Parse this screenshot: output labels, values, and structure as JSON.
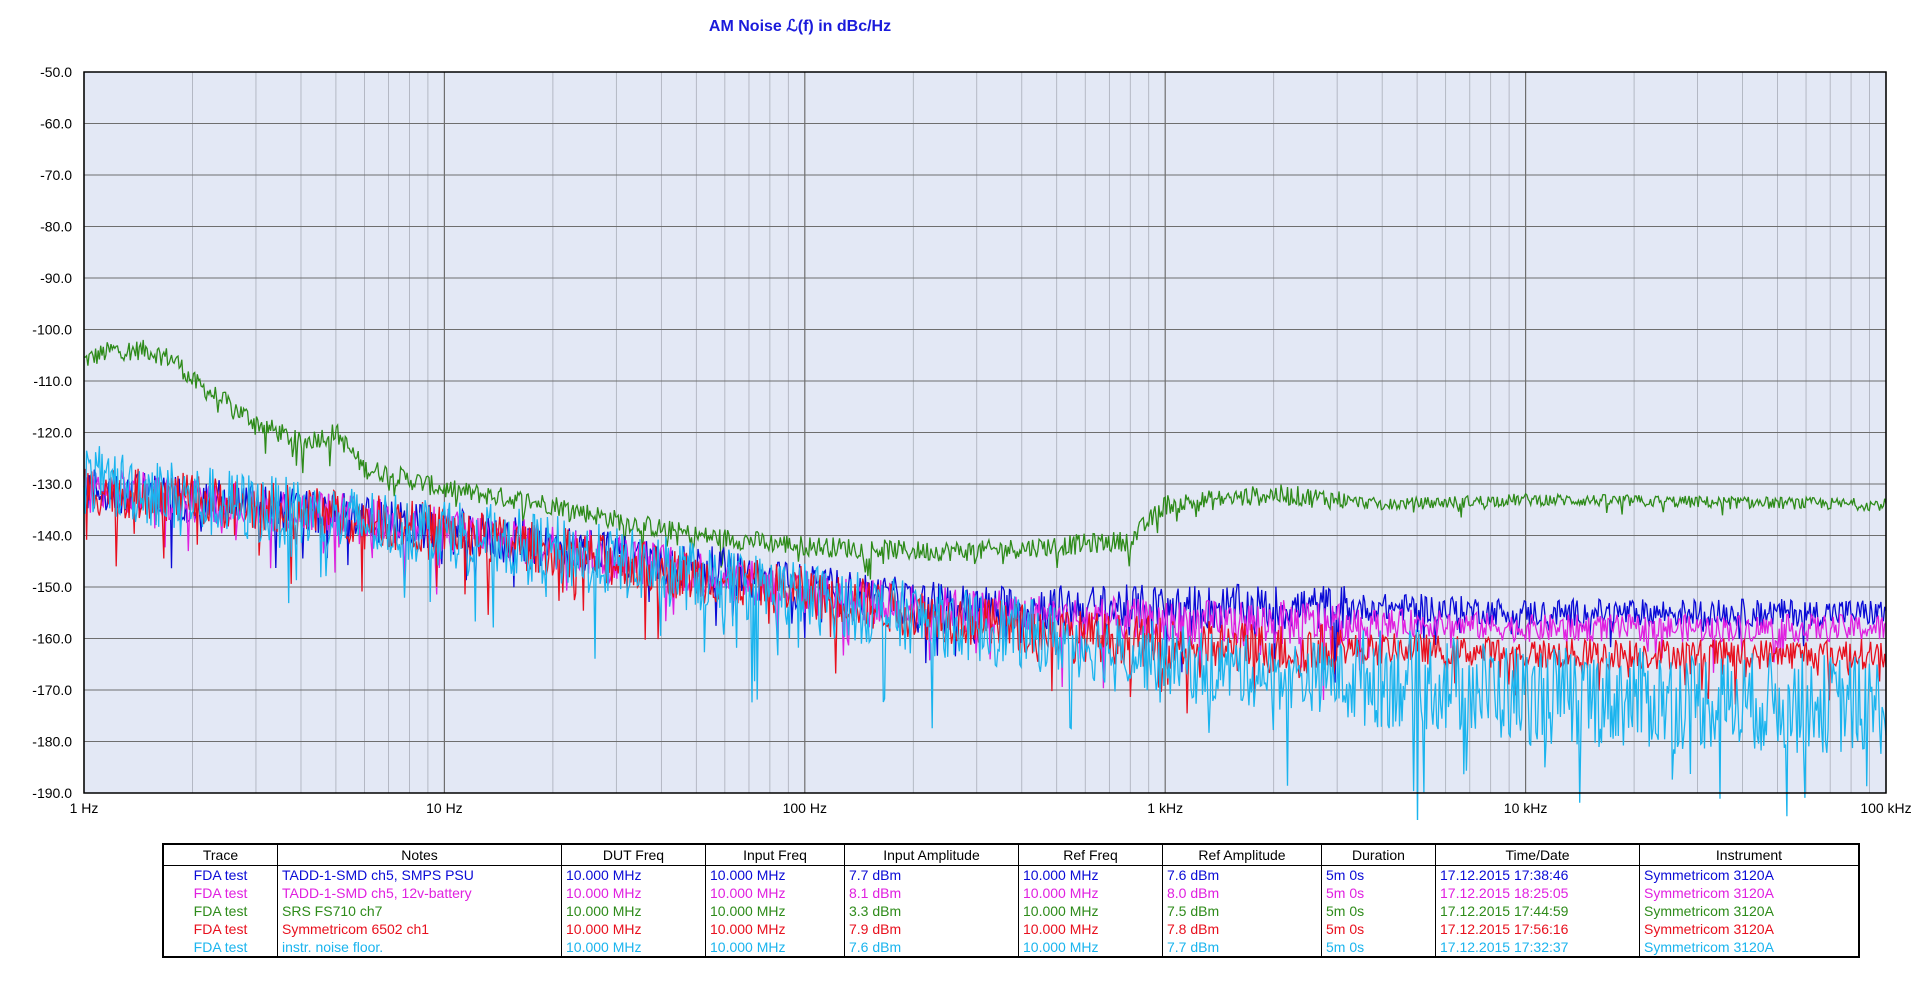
{
  "chart_data": {
    "type": "line",
    "title": "AM Noise ℒ(f) in dBc/Hz",
    "xlabel": "",
    "ylabel": "",
    "xscale": "log",
    "xlim": [
      1,
      100000
    ],
    "ylim": [
      -190,
      -50
    ],
    "grid": true,
    "x_tick_labels": [
      "1 Hz",
      "10 Hz",
      "100 Hz",
      "1 kHz",
      "10 kHz",
      "100 kHz"
    ],
    "y_tick_labels": [
      "-50.0",
      "-60.0",
      "-70.0",
      "-80.0",
      "-90.0",
      "-100.0",
      "-110.0",
      "-120.0",
      "-130.0",
      "-140.0",
      "-150.0",
      "-160.0",
      "-170.0",
      "-180.0",
      "-190.0"
    ],
    "series": [
      {
        "color": "#2e8b1a",
        "x": [
          1,
          1.2,
          1.5,
          1.8,
          2,
          3,
          4,
          5,
          6,
          7,
          10,
          20,
          30,
          50,
          100,
          200,
          300,
          500,
          800,
          1000,
          2000,
          3000,
          4000,
          10000,
          100000
        ],
        "y": [
          -106,
          -104,
          -104,
          -106,
          -110,
          -118,
          -122,
          -120,
          -127,
          -128,
          -131,
          -134,
          -137,
          -140,
          -142,
          -143,
          -143,
          -142,
          -141,
          -134,
          -132,
          -133,
          -134,
          -133,
          -134
        ]
      },
      {
        "color": "#0a0ad6",
        "x": [
          1,
          2,
          5,
          10,
          20,
          50,
          100,
          200,
          300,
          500,
          1000,
          2000,
          3000,
          5000,
          10000,
          100000
        ],
        "y": [
          -131,
          -133,
          -136,
          -139,
          -142,
          -146,
          -150,
          -153,
          -154,
          -154,
          -154,
          -154,
          -154,
          -154,
          -155,
          -155
        ]
      },
      {
        "color": "#e020e0",
        "x": [
          1,
          2,
          5,
          10,
          20,
          50,
          100,
          200,
          500,
          1000,
          2000,
          5000,
          10000,
          100000
        ],
        "y": [
          -131,
          -133,
          -136,
          -139,
          -142,
          -147,
          -151,
          -154,
          -156,
          -157,
          -157,
          -157,
          -158,
          -158
        ]
      },
      {
        "color": "#e8101e",
        "x": [
          1,
          2,
          5,
          10,
          20,
          50,
          100,
          200,
          500,
          1000,
          2000,
          5000,
          10000,
          100000
        ],
        "y": [
          -131,
          -133,
          -136,
          -139,
          -143,
          -148,
          -151,
          -155,
          -159,
          -161,
          -162,
          -162,
          -163,
          -163
        ]
      },
      {
        "color": "#1ab4ee",
        "x": [
          1,
          2,
          5,
          10,
          20,
          50,
          100,
          200,
          500,
          1000,
          2000,
          5000,
          10000,
          100000
        ],
        "y": [
          -129,
          -133,
          -137,
          -139,
          -143,
          -148,
          -152,
          -156,
          -160,
          -164,
          -167,
          -168,
          -171,
          -173
        ]
      }
    ],
    "table": {
      "headers": [
        "Trace",
        "Notes",
        "DUT Freq",
        "Input Freq",
        "Input Amplitude",
        "Ref Freq",
        "Ref Amplitude",
        "Duration",
        "Time/Date",
        "Instrument"
      ],
      "rows": [
        {
          "color": "#0a0ad6",
          "cells": [
            "FDA test",
            "TADD-1-SMD  ch5, SMPS PSU",
            "10.000 MHz",
            "10.000 MHz",
            "7.7 dBm",
            "10.000 MHz",
            "7.6 dBm",
            "5m 0s",
            "17.12.2015 17:38:46",
            "Symmetricom 3120A"
          ]
        },
        {
          "color": "#e020e0",
          "cells": [
            "FDA test",
            "TADD-1-SMD ch5, 12v-battery",
            "10.000 MHz",
            "10.000 MHz",
            "8.1 dBm",
            "10.000 MHz",
            "8.0 dBm",
            "5m 0s",
            "17.12.2015 18:25:05",
            "Symmetricom 3120A"
          ]
        },
        {
          "color": "#2e8b1a",
          "cells": [
            "FDA test",
            "SRS FS710 ch7",
            "10.000 MHz",
            "10.000 MHz",
            "3.3 dBm",
            "10.000 MHz",
            "7.5 dBm",
            "5m 0s",
            "17.12.2015 17:44:59",
            "Symmetricom 3120A"
          ]
        },
        {
          "color": "#e8101e",
          "cells": [
            "FDA test",
            "Symmetricom 6502 ch1",
            "10.000 MHz",
            "10.000 MHz",
            "7.9 dBm",
            "10.000 MHz",
            "7.8 dBm",
            "5m 0s",
            "17.12.2015 17:56:16",
            "Symmetricom 3120A"
          ]
        },
        {
          "color": "#1ab4ee",
          "cells": [
            "FDA test",
            "instr. noise floor.",
            "10.000 MHz",
            "10.000 MHz",
            "7.6 dBm",
            "10.000 MHz",
            "7.7 dBm",
            "5m 0s",
            "17.12.2015 17:32:37",
            "Symmetricom 3120A"
          ]
        }
      ]
    },
    "plot_background": "#e3e8f5"
  }
}
